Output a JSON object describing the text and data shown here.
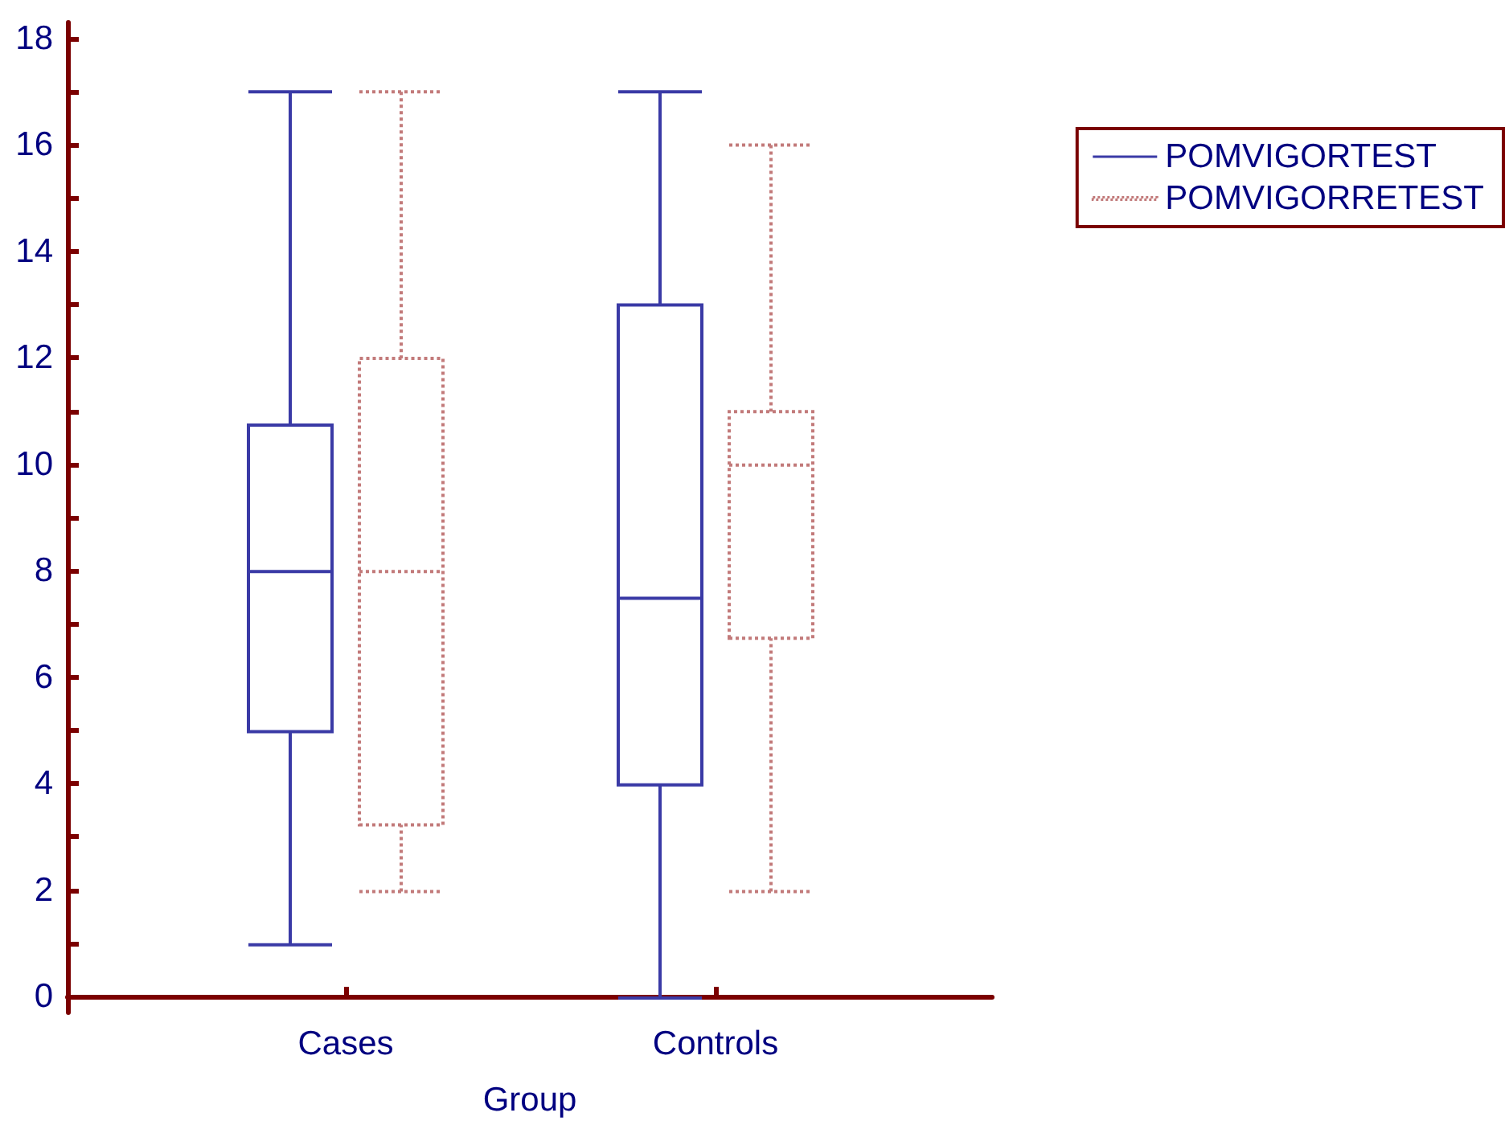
{
  "chart_data": {
    "type": "box",
    "xlabel": "Group",
    "categories": [
      "Cases",
      "Controls"
    ],
    "series": [
      {
        "name": "POMVIGORTEST",
        "color": "#3a3aa6",
        "line_style": "solid",
        "boxes": [
          {
            "low": 1,
            "q1": 5,
            "median": 8,
            "q3": 10.75,
            "high": 17
          },
          {
            "low": 0,
            "q1": 4,
            "median": 7.5,
            "q3": 13,
            "high": 17
          }
        ]
      },
      {
        "name": "POMVIGORRETEST",
        "color": "#c27a7a",
        "line_style": "dotted",
        "boxes": [
          {
            "low": 2,
            "q1": 3.25,
            "median": 8,
            "q3": 12,
            "high": 17
          },
          {
            "low": 2,
            "q1": 6.75,
            "median": 10,
            "q3": 11,
            "high": 16
          }
        ]
      }
    ],
    "ylim": [
      -0.3,
      18.3
    ],
    "yticks": [
      0,
      {
        "value": 1,
        "label": null
      },
      2,
      {
        "value": 3,
        "label": null
      },
      4,
      {
        "value": 5,
        "label": null
      },
      6,
      {
        "value": 7,
        "label": null
      },
      8,
      {
        "value": 9,
        "label": null
      },
      10,
      {
        "value": 11,
        "label": null
      },
      12,
      {
        "value": 13,
        "label": null
      },
      14,
      {
        "value": 15,
        "label": null
      },
      16,
      {
        "value": 17,
        "label": null
      },
      18
    ],
    "grid": false,
    "legend": "top right"
  }
}
